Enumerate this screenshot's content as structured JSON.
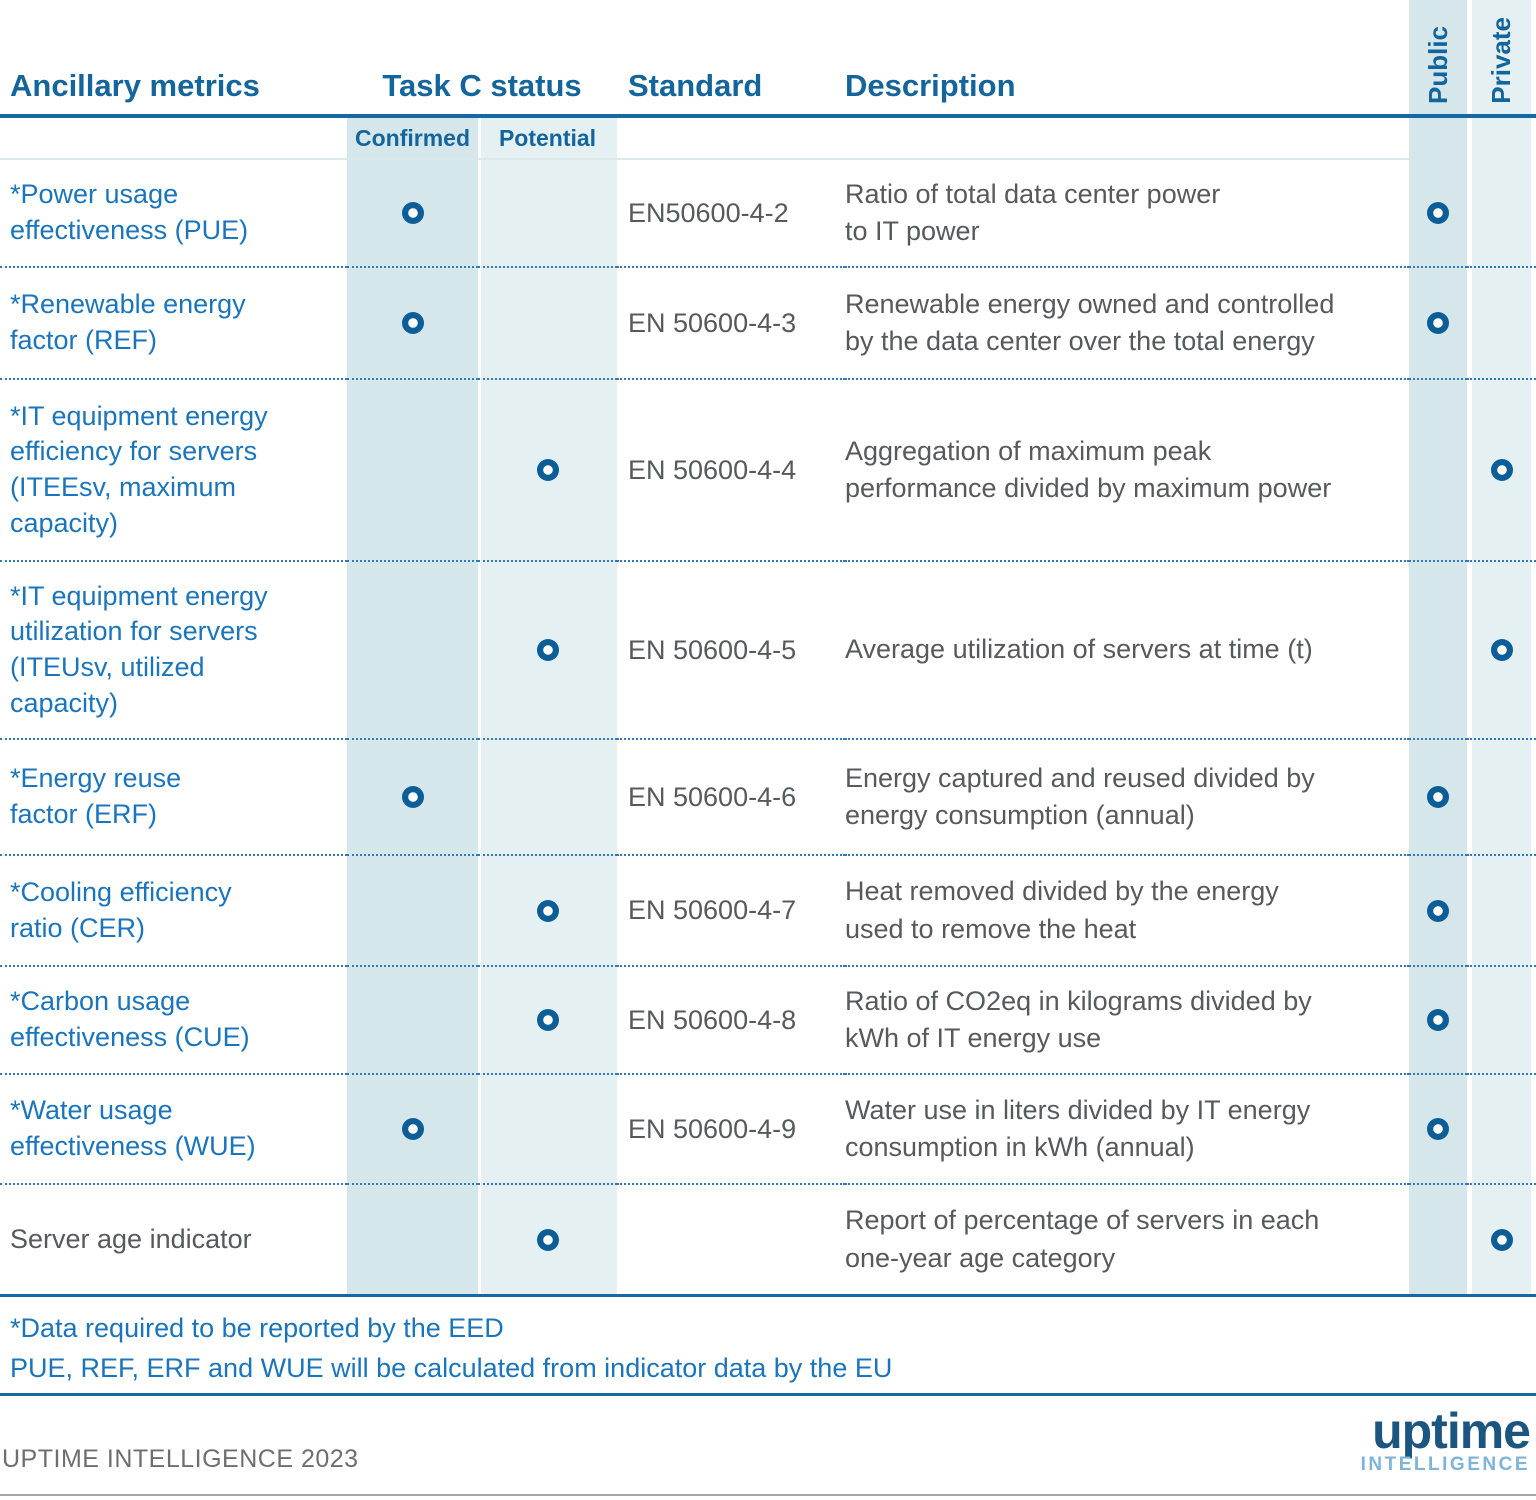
{
  "colors": {
    "header_text": "#14659b",
    "metric_text": "#1b75bc",
    "body_text": "#58595b",
    "confirmed_column_bg": "#d6e7eb",
    "potential_column_bg": "#e5f0f3",
    "public_column_bg": "#d6e7eb",
    "private_column_bg": "#e5f0f3",
    "dot": "#0d5d97",
    "rule_blue": "#1668a5",
    "dotted_separator": "#3079bd",
    "footnote_text": "#1b75bc",
    "logo_navy": "#1a5680",
    "logo_light_blue": "#7fb3d8"
  },
  "header": {
    "metrics_label": "Ancillary metrics",
    "status_label": "Task C status",
    "standard_label": "Standard",
    "description_label": "Description",
    "public_label": "Public",
    "private_label": "Private",
    "confirmed_label": "Confirmed",
    "potential_label": "Potential"
  },
  "rows": [
    {
      "metric": "*Power usage\neffectiveness (PUE)",
      "confirmed": true,
      "potential": false,
      "standard": "EN50600-4-2",
      "description": "Ratio of total data center power\nto IT power",
      "public": true,
      "private": false
    },
    {
      "metric": "*Renewable energy\nfactor (REF)",
      "confirmed": true,
      "potential": false,
      "standard": "EN 50600-4-3",
      "description": "Renewable energy owned and controlled\nby the data center over the total energy",
      "public": true,
      "private": false
    },
    {
      "metric": "*IT equipment energy\nefficiency for servers\n(ITEEsv, maximum\ncapacity)",
      "confirmed": false,
      "potential": true,
      "standard": "EN 50600-4-4",
      "description": "Aggregation of maximum peak\nperformance divided by maximum power",
      "public": false,
      "private": true
    },
    {
      "metric": "*IT equipment energy\nutilization for servers\n(ITEUsv, utilized\ncapacity)",
      "confirmed": false,
      "potential": true,
      "standard": "EN 50600-4-5",
      "description": "Average utilization of servers at time (t)",
      "public": false,
      "private": true
    },
    {
      "metric": "*Energy reuse\nfactor (ERF)",
      "confirmed": true,
      "potential": false,
      "standard": "EN 50600-4-6",
      "description": "Energy captured and reused divided by\nenergy consumption (annual)",
      "public": true,
      "private": false
    },
    {
      "metric": "*Cooling efficiency\nratio (CER)",
      "confirmed": false,
      "potential": true,
      "standard": "EN 50600-4-7",
      "description": "Heat removed divided by the energy\nused to remove the heat",
      "public": true,
      "private": false
    },
    {
      "metric": "*Carbon usage\neffectiveness (CUE)",
      "confirmed": false,
      "potential": true,
      "standard": "EN 50600-4-8",
      "description": "Ratio of CO2eq in kilograms divided by\nkWh of IT energy use",
      "public": true,
      "private": false
    },
    {
      "metric": "*Water usage\neffectiveness (WUE)",
      "confirmed": true,
      "potential": false,
      "standard": "EN 50600-4-9",
      "description": "Water use in liters divided by IT energy\nconsumption in kWh (annual)",
      "public": true,
      "private": false
    },
    {
      "metric": "Server age indicator",
      "confirmed": false,
      "potential": true,
      "standard": "",
      "description": "Report of percentage of servers in each\none-year age category",
      "public": false,
      "private": true
    }
  ],
  "footnotes": {
    "line1": "*Data required to be reported by the EED",
    "line2": "PUE, REF, ERF and WUE will be calculated from indicator data by the EU"
  },
  "footer": {
    "copyright": "UPTIME INTELLIGENCE 2023",
    "logo_primary": "uptime",
    "logo_secondary": "INTELLIGENCE"
  }
}
